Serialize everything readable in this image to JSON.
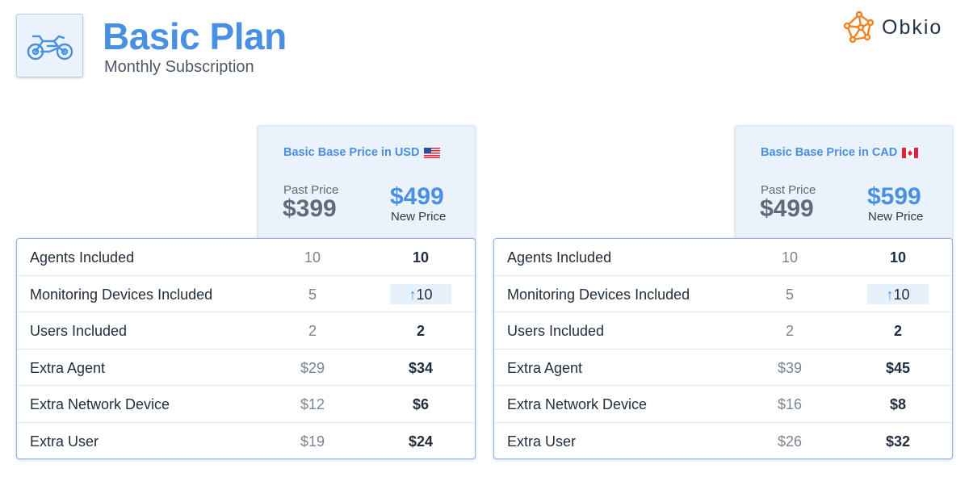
{
  "header": {
    "title": "Basic Plan",
    "subtitle": "Monthly Subscription",
    "icon": "motorcycle-icon"
  },
  "brand": {
    "name": "Obkio",
    "icon": "obkio-network-logo",
    "color": "#f58220"
  },
  "colors": {
    "accent": "#4a90e2",
    "text": "#1f2d3d",
    "muted": "#7a8592",
    "panel": "#eaf2fb"
  },
  "pricing": [
    {
      "currency_title": "Basic Base Price in USD",
      "flag": "us-flag-icon",
      "past_label": "Past Price",
      "past_price": "$399",
      "new_price": "$499",
      "new_label": "New Price",
      "rows": [
        {
          "label": "Agents Included",
          "past": "10",
          "new": "10"
        },
        {
          "label": "Monitoring Devices Included",
          "past": "5",
          "new": "10",
          "arrow": "↑"
        },
        {
          "label": "Users Included",
          "past": "2",
          "new": "2"
        },
        {
          "label": "Extra Agent",
          "past": "$29",
          "new": "$34"
        },
        {
          "label": "Extra Network Device",
          "past": "$12",
          "new": "$6"
        },
        {
          "label": "Extra User",
          "past": "$19",
          "new": "$24"
        }
      ]
    },
    {
      "currency_title": "Basic Base Price in CAD",
      "flag": "canada-flag-icon",
      "past_label": "Past Price",
      "past_price": "$499",
      "new_price": "$599",
      "new_label": "New Price",
      "rows": [
        {
          "label": "Agents Included",
          "past": "10",
          "new": "10"
        },
        {
          "label": "Monitoring Devices Included",
          "past": "5",
          "new": "10",
          "arrow": "↑"
        },
        {
          "label": "Users Included",
          "past": "2",
          "new": "2"
        },
        {
          "label": "Extra Agent",
          "past": "$39",
          "new": "$45"
        },
        {
          "label": "Extra Network Device",
          "past": "$16",
          "new": "$8"
        },
        {
          "label": "Extra User",
          "past": "$26",
          "new": "$32"
        }
      ]
    }
  ]
}
